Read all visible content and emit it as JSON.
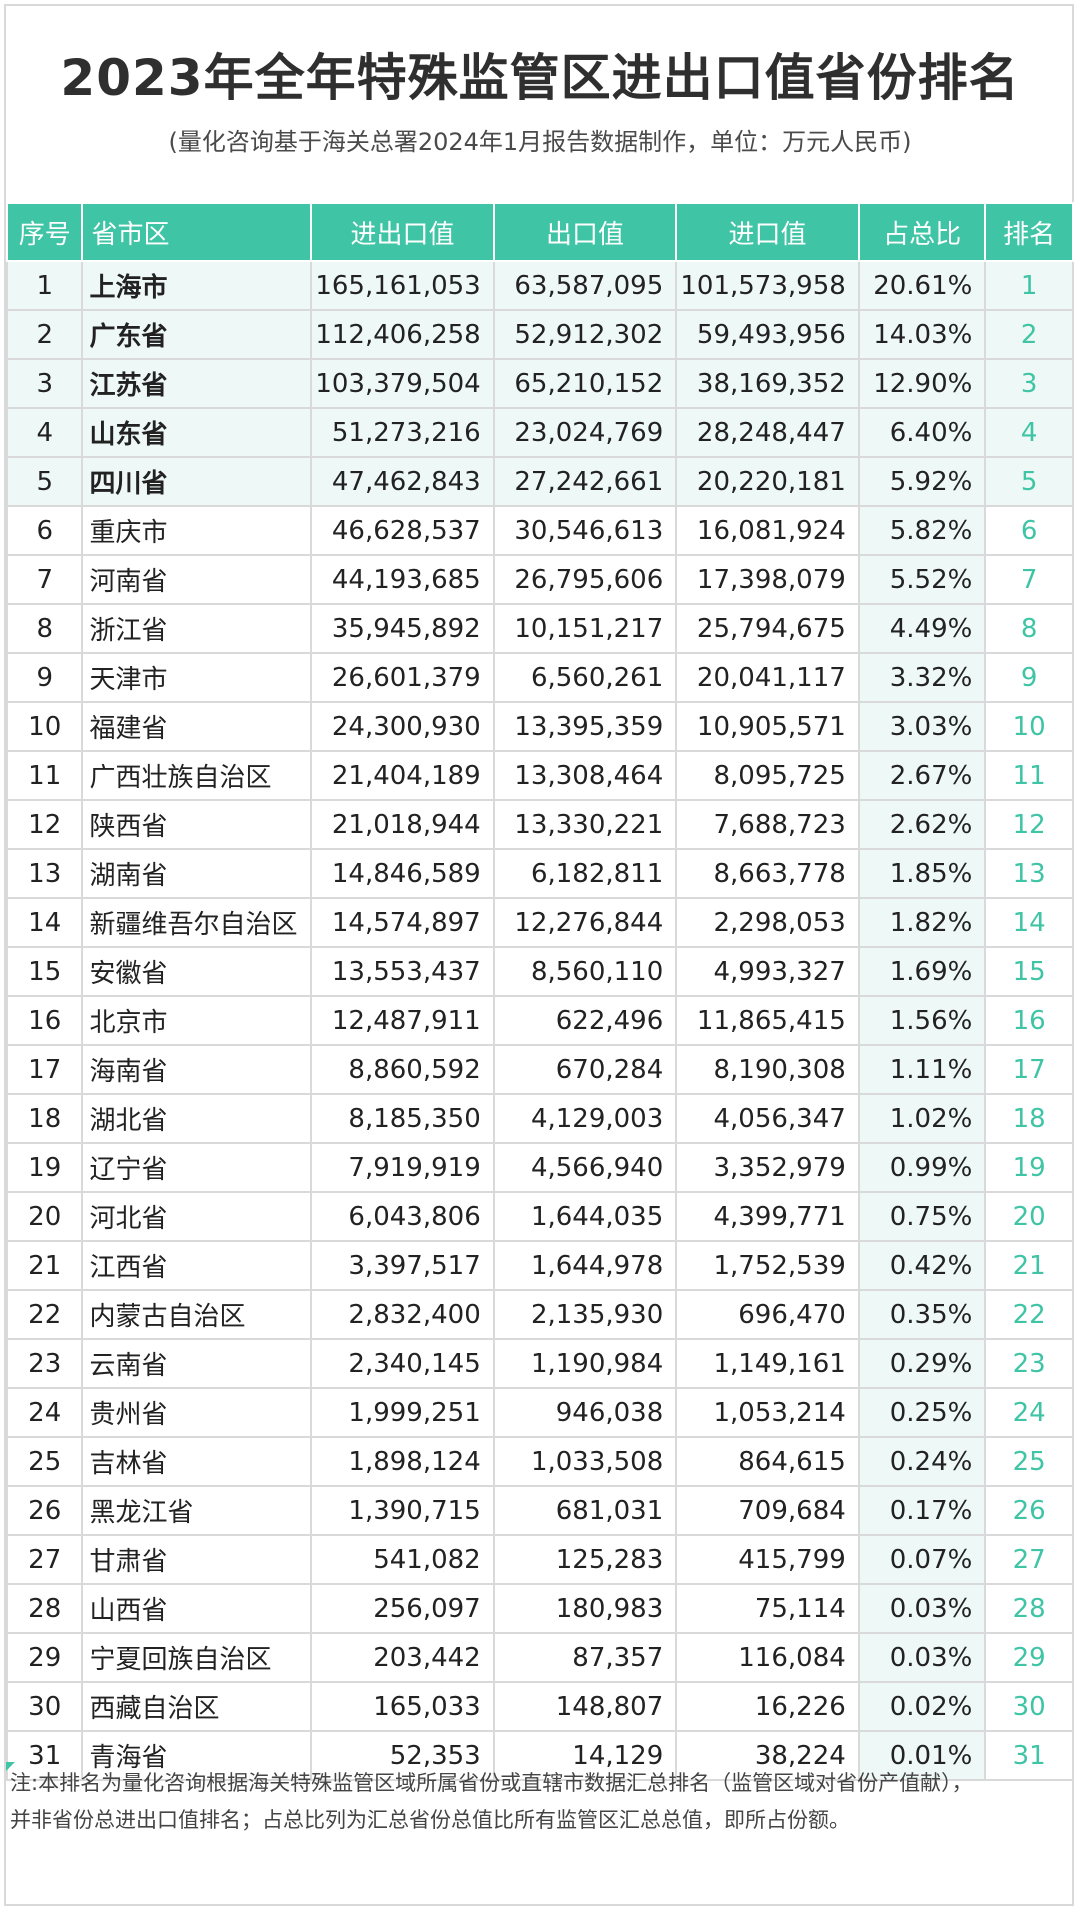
{
  "title": "2023年全年特殊监管区进出口值省份排名",
  "subtitle": "(量化咨询基于海关总署2024年1月报告数据制作，单位：万元人民币)",
  "headers": [
    "序号",
    "省市区",
    "进出口值",
    "出口值",
    "进口值",
    "占总比",
    "排名"
  ],
  "rows": [
    [
      "1",
      "上海市",
      "165,161,053",
      "63,587,095",
      "101,573,958",
      "20.61%",
      "1"
    ],
    [
      "2",
      "广东省",
      "112,406,258",
      "52,912,302",
      "59,493,956",
      "14.03%",
      "2"
    ],
    [
      "3",
      "江苏省",
      "103,379,504",
      "65,210,152",
      "38,169,352",
      "12.90%",
      "3"
    ],
    [
      "4",
      "山东省",
      "51,273,216",
      "23,024,769",
      "28,248,447",
      "6.40%",
      "4"
    ],
    [
      "5",
      "四川省",
      "47,462,843",
      "27,242,661",
      "20,220,181",
      "5.92%",
      "5"
    ],
    [
      "6",
      "重庆市",
      "46,628,537",
      "30,546,613",
      "16,081,924",
      "5.82%",
      "6"
    ],
    [
      "7",
      "河南省",
      "44,193,685",
      "26,795,606",
      "17,398,079",
      "5.52%",
      "7"
    ],
    [
      "8",
      "浙江省",
      "35,945,892",
      "10,151,217",
      "25,794,675",
      "4.49%",
      "8"
    ],
    [
      "9",
      "天津市",
      "26,601,379",
      "6,560,261",
      "20,041,117",
      "3.32%",
      "9"
    ],
    [
      "10",
      "福建省",
      "24,300,930",
      "13,395,359",
      "10,905,571",
      "3.03%",
      "10"
    ],
    [
      "11",
      "广西壮族自治区",
      "21,404,189",
      "13,308,464",
      "8,095,725",
      "2.67%",
      "11"
    ],
    [
      "12",
      "陕西省",
      "21,018,944",
      "13,330,221",
      "7,688,723",
      "2.62%",
      "12"
    ],
    [
      "13",
      "湖南省",
      "14,846,589",
      "6,182,811",
      "8,663,778",
      "1.85%",
      "13"
    ],
    [
      "14",
      "新疆维吾尔自治区",
      "14,574,897",
      "12,276,844",
      "2,298,053",
      "1.82%",
      "14"
    ],
    [
      "15",
      "安徽省",
      "13,553,437",
      "8,560,110",
      "4,993,327",
      "1.69%",
      "15"
    ],
    [
      "16",
      "北京市",
      "12,487,911",
      "622,496",
      "11,865,415",
      "1.56%",
      "16"
    ],
    [
      "17",
      "海南省",
      "8,860,592",
      "670,284",
      "8,190,308",
      "1.11%",
      "17"
    ],
    [
      "18",
      "湖北省",
      "8,185,350",
      "4,129,003",
      "4,056,347",
      "1.02%",
      "18"
    ],
    [
      "19",
      "辽宁省",
      "7,919,919",
      "4,566,940",
      "3,352,979",
      "0.99%",
      "19"
    ],
    [
      "20",
      "河北省",
      "6,043,806",
      "1,644,035",
      "4,399,771",
      "0.75%",
      "20"
    ],
    [
      "21",
      "江西省",
      "3,397,517",
      "1,644,978",
      "1,752,539",
      "0.42%",
      "21"
    ],
    [
      "22",
      "内蒙古自治区",
      "2,832,400",
      "2,135,930",
      "696,470",
      "0.35%",
      "22"
    ],
    [
      "23",
      "云南省",
      "2,340,145",
      "1,190,984",
      "1,149,161",
      "0.29%",
      "23"
    ],
    [
      "24",
      "贵州省",
      "1,999,251",
      "946,038",
      "1,053,214",
      "0.25%",
      "24"
    ],
    [
      "25",
      "吉林省",
      "1,898,124",
      "1,033,508",
      "864,615",
      "0.24%",
      "25"
    ],
    [
      "26",
      "黑龙江省",
      "1,390,715",
      "681,031",
      "709,684",
      "0.17%",
      "26"
    ],
    [
      "27",
      "甘肃省",
      "541,082",
      "125,283",
      "415,799",
      "0.07%",
      "27"
    ],
    [
      "28",
      "山西省",
      "256,097",
      "180,983",
      "75,114",
      "0.03%",
      "28"
    ],
    [
      "29",
      "宁夏回族自治区",
      "203,442",
      "87,357",
      "116,084",
      "0.03%",
      "29"
    ],
    [
      "30",
      "西藏自治区",
      "165,033",
      "148,807",
      "16,226",
      "0.02%",
      "30"
    ],
    [
      "31",
      "青海省",
      "52,353",
      "14,129",
      "38,224",
      "0.01%",
      "31"
    ]
  ],
  "notes": [
    "注:本排名为量化咨询根据海关特殊监管区域所属省份或直辖市数据汇总排名（监管区域对省份产值献），",
    "并非省份总进出口值排名；占总比列为汇总省份总值比所有监管区汇总总值，即所占份额。"
  ],
  "colors": {
    "header_bg": "#3fc4a5",
    "highlight_bg": "#eef8f6",
    "rank_text": "#3fc4a5"
  }
}
